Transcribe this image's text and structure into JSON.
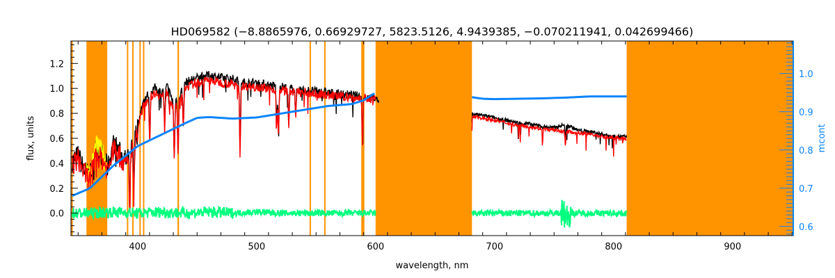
{
  "chart_data": {
    "type": "line",
    "title": "HD069582    (−8.8865976, 0.66929727, 5823.5126, 4.9439385, −0.070211941, 0.042699466)",
    "xlabel": "wavelength, nm",
    "ylabel": "flux, units",
    "y2label": "mcont",
    "xlim": [
      344,
      951
    ],
    "ylim": [
      -0.18,
      1.38
    ],
    "y2lim": [
      0.576,
      1.085
    ],
    "xticks": [
      400,
      500,
      600,
      700,
      800,
      900
    ],
    "yticks": [
      0.0,
      0.2,
      0.4,
      0.6,
      0.8,
      1.0,
      1.2
    ],
    "y2ticks": [
      0.6,
      0.7,
      0.8,
      0.9,
      1.0
    ],
    "grid": false,
    "colors": {
      "observed": "#000000",
      "model": "#ff0000",
      "masked": "#ffff00",
      "continuum": "#0a84ff",
      "residual": "#00ff7f",
      "mask_band": "#ff9400",
      "right_axis": "#0a84ff"
    },
    "masked_regions": [
      [
        344,
        345.5
      ],
      [
        357,
        374.5
      ],
      [
        391,
        392
      ],
      [
        395.5,
        396.5
      ],
      [
        401.5,
        402.5
      ],
      [
        404.5,
        405.5
      ],
      [
        433.5,
        434.8
      ],
      [
        544.5,
        545.5
      ],
      [
        556.8,
        557.8
      ],
      [
        588,
        590.6
      ],
      [
        600,
        681
      ],
      [
        811,
        951
      ]
    ],
    "series": [
      {
        "name": "observed flux",
        "axis": "left",
        "segments": [
          {
            "x": [
              345,
              350,
              355,
              360,
              365,
              370,
              375,
              380,
              385,
              390,
              395,
              400,
              405,
              410,
              415,
              420,
              425,
              430,
              435,
              440,
              450,
              460,
              470,
              480,
              490,
              500,
              510,
              520,
              530,
              540,
              550,
              560,
              570,
              580,
              590,
              600,
              603
            ],
            "y": [
              0.45,
              0.5,
              0.38,
              0.33,
              0.55,
              0.5,
              0.4,
              0.6,
              0.52,
              0.45,
              0.55,
              0.72,
              0.92,
              0.98,
              1.02,
              0.98,
              1.03,
              0.9,
              0.95,
              1.06,
              1.1,
              1.12,
              1.1,
              1.09,
              1.06,
              1.06,
              1.04,
              1.03,
              1.01,
              1.0,
              0.99,
              0.98,
              0.97,
              0.96,
              0.95,
              0.93,
              0.9
            ]
          },
          {
            "x": [
              681,
              690,
              700,
              710,
              720,
              730,
              740,
              750,
              760,
              770,
              780,
              790,
              800,
              811
            ],
            "y": [
              0.8,
              0.79,
              0.77,
              0.75,
              0.73,
              0.72,
              0.7,
              0.69,
              0.72,
              0.67,
              0.66,
              0.64,
              0.62,
              0.62
            ]
          }
        ]
      },
      {
        "name": "model flux",
        "axis": "left",
        "segments": [
          {
            "x": [
              345,
              350,
              355,
              360,
              365,
              370,
              375,
              380,
              385,
              390,
              395,
              400,
              405,
              410,
              415,
              420,
              425,
              430,
              435,
              440,
              450,
              460,
              470,
              480,
              490,
              500,
              510,
              520,
              530,
              540,
              550,
              560,
              570,
              580,
              590,
              600
            ],
            "y": [
              0.42,
              0.47,
              0.36,
              0.3,
              0.5,
              0.47,
              0.38,
              0.56,
              0.49,
              0.42,
              0.52,
              0.68,
              0.88,
              0.94,
              0.98,
              0.95,
              0.99,
              0.86,
              0.92,
              1.02,
              1.06,
              1.08,
              1.06,
              1.05,
              1.03,
              1.03,
              1.01,
              1.0,
              0.99,
              0.98,
              0.97,
              0.96,
              0.95,
              0.94,
              0.93,
              0.93
            ]
          },
          {
            "x": [
              681,
              690,
              700,
              710,
              720,
              730,
              740,
              750,
              760,
              770,
              780,
              790,
              800,
              811
            ],
            "y": [
              0.78,
              0.77,
              0.75,
              0.73,
              0.71,
              0.7,
              0.68,
              0.67,
              0.66,
              0.65,
              0.64,
              0.62,
              0.61,
              0.6
            ]
          }
        ]
      },
      {
        "name": "continuum",
        "axis": "right",
        "segments": [
          {
            "x": [
              345,
              360,
              380,
              400,
              420,
              440,
              450,
              460,
              480,
              500,
              520,
              540,
              560,
              580,
              590,
              600
            ],
            "y": [
              0.68,
              0.7,
              0.76,
              0.81,
              0.84,
              0.87,
              0.884,
              0.886,
              0.882,
              0.885,
              0.895,
              0.905,
              0.915,
              0.92,
              0.93,
              0.95
            ]
          },
          {
            "x": [
              681,
              690,
              700,
              720,
              740,
              760,
              780,
              800,
              811
            ],
            "y": [
              0.938,
              0.934,
              0.933,
              0.934,
              0.935,
              0.937,
              0.94,
              0.94,
              0.94
            ]
          }
        ]
      },
      {
        "name": "residual",
        "axis": "left",
        "segments": [
          {
            "x": [
              345,
              360,
              380,
              400,
              420,
              440,
              460,
              480,
              500,
              520,
              540,
              560,
              580,
              600
            ],
            "y": [
              0,
              0,
              0.01,
              0,
              0.01,
              0,
              0.01,
              0,
              0.01,
              0,
              0,
              0,
              0,
              0
            ]
          },
          {
            "x": [
              681,
              700,
              720,
              740,
              760,
              780,
              800,
              811
            ],
            "y": [
              0,
              0,
              0,
              0,
              0,
              0,
              0,
              0
            ]
          }
        ]
      }
    ],
    "absorption_lines": [
      [
        393.4,
        0.45
      ],
      [
        396.8,
        0.4
      ],
      [
        410.2,
        0.35
      ],
      [
        422.7,
        0.3
      ],
      [
        430.8,
        0.45
      ],
      [
        434.0,
        0.45
      ],
      [
        438.4,
        0.3
      ],
      [
        486.1,
        0.55
      ],
      [
        516.9,
        0.3
      ],
      [
        518.4,
        0.35
      ],
      [
        527,
        0.3
      ],
      [
        532.8,
        0.2
      ],
      [
        589.0,
        0.35
      ],
      [
        759.5,
        0.1
      ]
    ]
  }
}
